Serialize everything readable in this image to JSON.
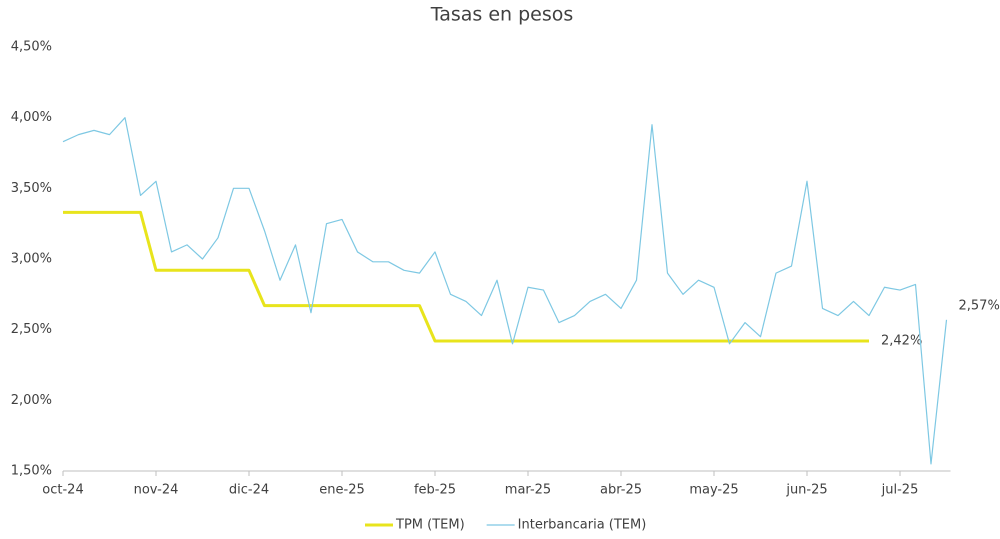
{
  "chart_data": {
    "type": "line",
    "title": "Tasas en pesos",
    "categories": [
      "oct-24",
      null,
      null,
      null,
      null,
      null,
      "nov-24",
      null,
      null,
      null,
      null,
      null,
      "dic-24",
      null,
      null,
      null,
      null,
      null,
      "ene-25",
      null,
      null,
      null,
      null,
      null,
      "feb-25",
      null,
      null,
      null,
      null,
      null,
      "mar-25",
      null,
      null,
      null,
      null,
      null,
      "abr-25",
      null,
      null,
      null,
      null,
      null,
      "may-25",
      null,
      null,
      null,
      null,
      null,
      "jun-25",
      null,
      null,
      null,
      null,
      null,
      "jul-25",
      null,
      null,
      null
    ],
    "series": [
      {
        "name": "TPM (TEM)",
        "color": "#e8e41c",
        "values": [
          3.33,
          3.33,
          3.33,
          3.33,
          3.33,
          3.33,
          2.92,
          2.92,
          2.92,
          2.92,
          2.92,
          2.92,
          2.92,
          2.67,
          2.67,
          2.67,
          2.67,
          2.67,
          2.67,
          2.67,
          2.67,
          2.67,
          2.67,
          2.67,
          2.42,
          2.42,
          2.42,
          2.42,
          2.42,
          2.42,
          2.42,
          2.42,
          2.42,
          2.42,
          2.42,
          2.42,
          2.42,
          2.42,
          2.42,
          2.42,
          2.42,
          2.42,
          2.42,
          2.42,
          2.42,
          2.42,
          2.42,
          2.42,
          2.42,
          2.42,
          2.42,
          2.42,
          2.42,
          null,
          null,
          null,
          null,
          null
        ],
        "value_labels": [
          null,
          null,
          null,
          null,
          null,
          null,
          null,
          null,
          null,
          null,
          null,
          null,
          null,
          null,
          null,
          null,
          null,
          null,
          null,
          null,
          null,
          null,
          null,
          null,
          null,
          null,
          null,
          null,
          null,
          null,
          null,
          null,
          null,
          null,
          null,
          null,
          null,
          null,
          null,
          null,
          null,
          null,
          null,
          null,
          null,
          null,
          null,
          null,
          null,
          null,
          null,
          null,
          "2,42%",
          null,
          null,
          null,
          null,
          null
        ]
      },
      {
        "name": "Interbancaria (TEM)",
        "color": "#7ec8e3",
        "values": [
          3.83,
          3.88,
          3.91,
          3.88,
          4.0,
          3.45,
          3.55,
          3.05,
          3.1,
          3.0,
          3.15,
          3.5,
          3.5,
          3.2,
          2.85,
          3.1,
          2.62,
          3.25,
          3.28,
          3.05,
          2.98,
          2.98,
          2.92,
          2.9,
          3.05,
          2.75,
          2.7,
          2.6,
          2.85,
          2.4,
          2.8,
          2.78,
          2.55,
          2.6,
          2.7,
          2.75,
          2.65,
          2.85,
          3.95,
          2.9,
          2.75,
          2.85,
          2.8,
          2.4,
          2.55,
          2.45,
          2.9,
          2.95,
          3.55,
          2.65,
          2.6,
          2.7,
          2.6,
          2.8,
          2.78,
          2.82,
          1.55,
          2.57
        ],
        "value_labels": [
          null,
          null,
          null,
          null,
          null,
          null,
          null,
          null,
          null,
          null,
          null,
          null,
          null,
          null,
          null,
          null,
          null,
          null,
          null,
          null,
          null,
          null,
          null,
          null,
          null,
          null,
          null,
          null,
          null,
          null,
          null,
          null,
          null,
          null,
          null,
          null,
          null,
          null,
          null,
          null,
          null,
          null,
          null,
          null,
          null,
          null,
          null,
          null,
          null,
          null,
          null,
          null,
          null,
          null,
          null,
          null,
          null,
          "2,57%"
        ]
      }
    ],
    "ylim": [
      1.5,
      4.5
    ],
    "yticks": [
      {
        "value": 1.5,
        "label": "1,50%"
      },
      {
        "value": 2.0,
        "label": "2,00%"
      },
      {
        "value": 2.5,
        "label": "2,50%"
      },
      {
        "value": 3.0,
        "label": "3,00%"
      },
      {
        "value": 3.5,
        "label": "3,50%"
      },
      {
        "value": 4.0,
        "label": "4,00%"
      },
      {
        "value": 4.5,
        "label": "4,50%"
      }
    ],
    "grid": false,
    "legend": "bottom"
  }
}
